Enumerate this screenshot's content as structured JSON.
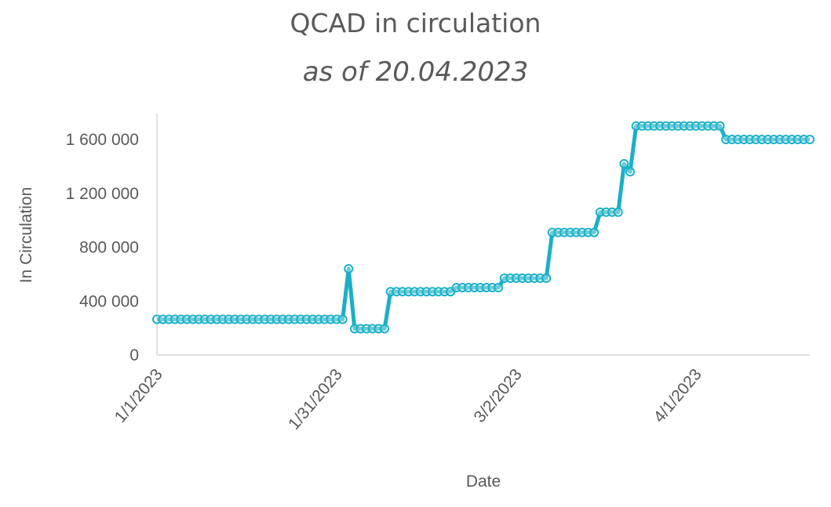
{
  "chart_data": {
    "type": "line",
    "title": "QCAD in circulation",
    "subtitle": "as of 20.04.2023",
    "xlabel": "Date",
    "ylabel": "In Circulation",
    "x_ticks": [
      "1/1/2023",
      "1/31/2023",
      "3/2/2023",
      "4/1/2023"
    ],
    "y_ticks": [
      "0",
      "400 000",
      "800 000",
      "1 200 000",
      "1 600 000"
    ],
    "ylim": [
      0,
      1800000
    ],
    "xlim": [
      "2023-01-01",
      "2023-04-20"
    ],
    "grid": false,
    "series_color": "#1BAFC7",
    "series": [
      {
        "x": [
          "2023-01-01",
          "2023-01-02",
          "2023-01-03",
          "2023-01-04",
          "2023-01-05",
          "2023-01-06",
          "2023-01-07",
          "2023-01-08",
          "2023-01-09",
          "2023-01-10",
          "2023-01-11",
          "2023-01-12",
          "2023-01-13",
          "2023-01-14",
          "2023-01-15",
          "2023-01-16",
          "2023-01-17",
          "2023-01-18",
          "2023-01-19",
          "2023-01-20",
          "2023-01-21",
          "2023-01-22",
          "2023-01-23",
          "2023-01-24",
          "2023-01-25",
          "2023-01-26",
          "2023-01-27",
          "2023-01-28",
          "2023-01-29",
          "2023-01-30",
          "2023-01-31",
          "2023-02-01",
          "2023-02-02",
          "2023-02-03",
          "2023-02-04",
          "2023-02-05",
          "2023-02-06",
          "2023-02-07",
          "2023-02-08",
          "2023-02-09",
          "2023-02-10",
          "2023-02-11",
          "2023-02-12",
          "2023-02-13",
          "2023-02-14",
          "2023-02-15",
          "2023-02-16",
          "2023-02-17",
          "2023-02-18",
          "2023-02-19",
          "2023-02-20",
          "2023-02-21",
          "2023-02-22",
          "2023-02-23",
          "2023-02-24",
          "2023-02-25",
          "2023-02-26",
          "2023-02-27",
          "2023-02-28",
          "2023-03-01",
          "2023-03-02",
          "2023-03-03",
          "2023-03-04",
          "2023-03-05",
          "2023-03-06",
          "2023-03-07",
          "2023-03-08",
          "2023-03-09",
          "2023-03-10",
          "2023-03-11",
          "2023-03-12",
          "2023-03-13",
          "2023-03-14",
          "2023-03-15",
          "2023-03-16",
          "2023-03-17",
          "2023-03-18",
          "2023-03-19",
          "2023-03-20",
          "2023-03-21",
          "2023-03-22",
          "2023-03-23",
          "2023-03-24",
          "2023-03-25",
          "2023-03-26",
          "2023-03-27",
          "2023-03-28",
          "2023-03-29",
          "2023-03-30",
          "2023-03-31",
          "2023-04-01",
          "2023-04-02",
          "2023-04-03",
          "2023-04-04",
          "2023-04-05",
          "2023-04-06",
          "2023-04-07",
          "2023-04-08",
          "2023-04-09",
          "2023-04-10",
          "2023-04-11",
          "2023-04-12",
          "2023-04-13",
          "2023-04-14",
          "2023-04-15",
          "2023-04-16",
          "2023-04-17",
          "2023-04-18",
          "2023-04-19",
          "2023-04-20"
        ],
        "values": [
          265000,
          265000,
          265000,
          265000,
          265000,
          265000,
          265000,
          265000,
          265000,
          265000,
          265000,
          265000,
          265000,
          265000,
          265000,
          265000,
          265000,
          265000,
          265000,
          265000,
          265000,
          265000,
          265000,
          265000,
          265000,
          265000,
          265000,
          265000,
          265000,
          265000,
          265000,
          265000,
          640000,
          195000,
          195000,
          195000,
          195000,
          195000,
          195000,
          470000,
          470000,
          470000,
          470000,
          470000,
          470000,
          470000,
          470000,
          470000,
          470000,
          470000,
          500000,
          500000,
          500000,
          500000,
          500000,
          500000,
          500000,
          500000,
          570000,
          570000,
          570000,
          570000,
          570000,
          570000,
          570000,
          570000,
          910000,
          910000,
          910000,
          910000,
          910000,
          910000,
          910000,
          910000,
          1060000,
          1060000,
          1060000,
          1060000,
          1420000,
          1360000,
          1700000,
          1700000,
          1700000,
          1700000,
          1700000,
          1700000,
          1700000,
          1700000,
          1700000,
          1700000,
          1700000,
          1700000,
          1700000,
          1700000,
          1700000,
          1600000,
          1600000,
          1600000,
          1600000,
          1600000,
          1600000,
          1600000,
          1600000,
          1600000,
          1600000,
          1600000,
          1600000,
          1600000,
          1600000,
          1600000
        ]
      }
    ]
  }
}
